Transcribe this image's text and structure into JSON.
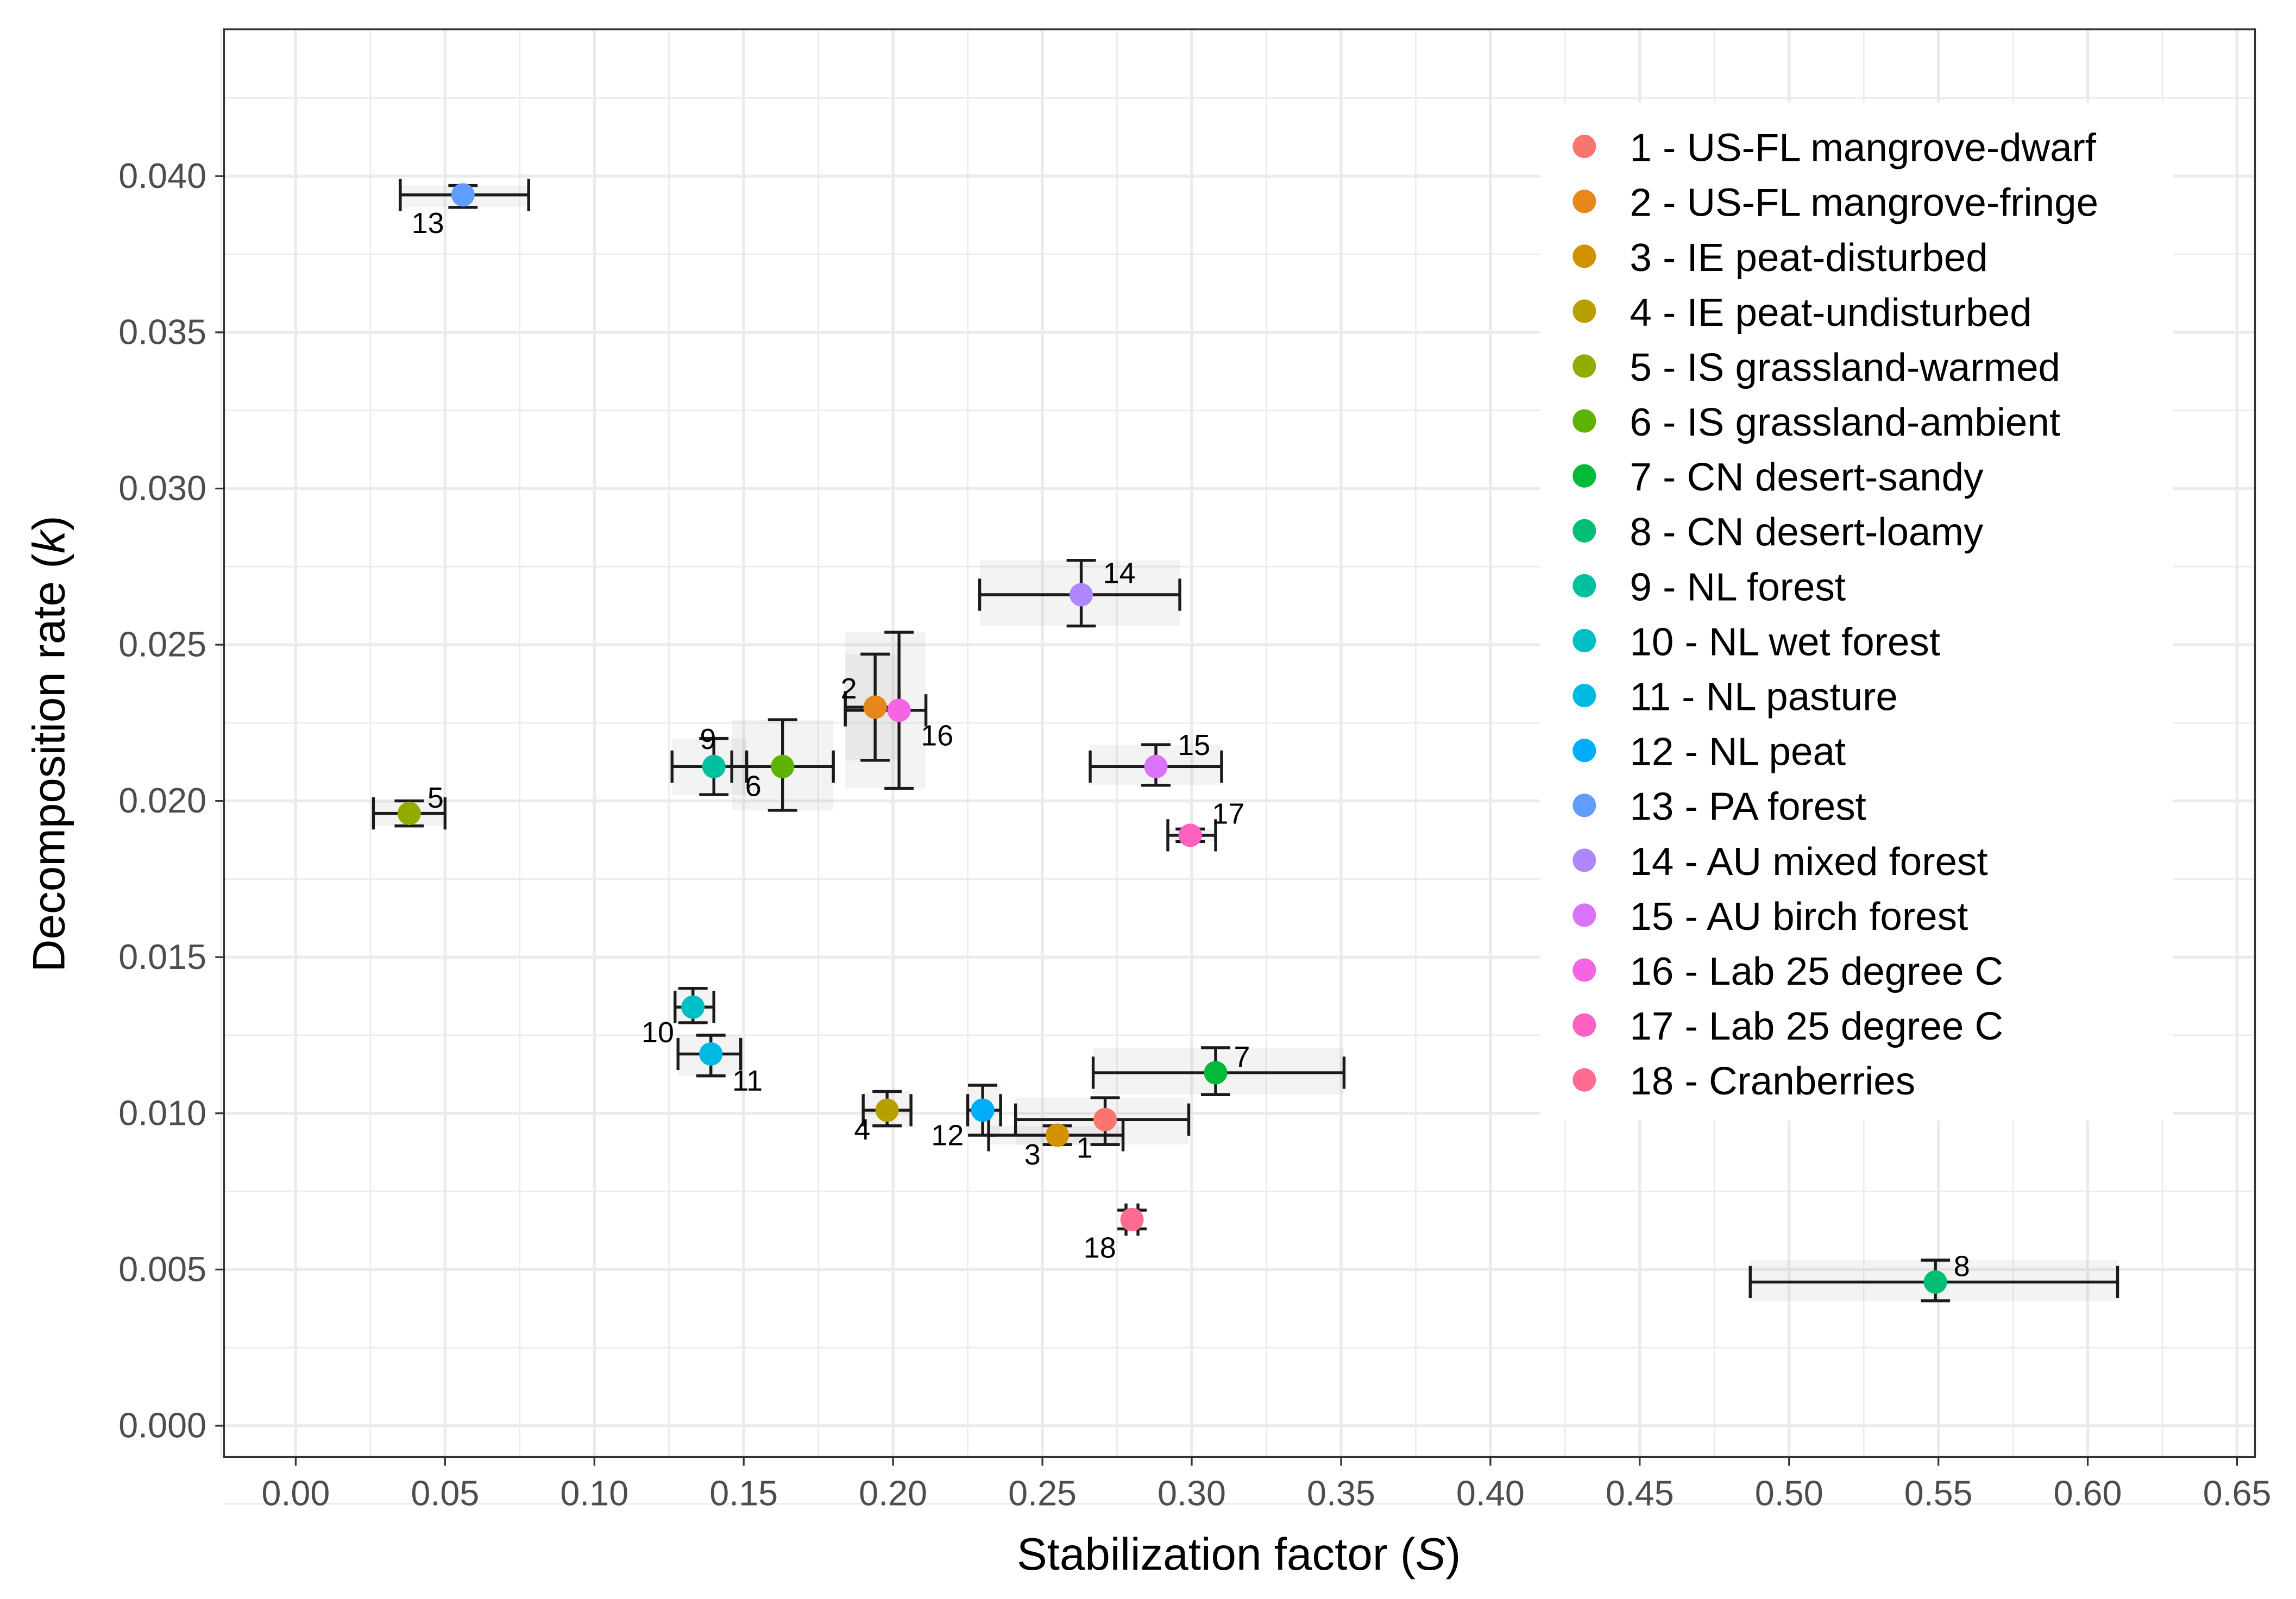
{
  "chart_data": {
    "type": "scatter",
    "title": "",
    "xlabel": "Stabilization factor (S)",
    "xlabel_main": "Stabilization factor ",
    "xlabel_symbol": "S",
    "ylabel": "Decomposition rate (k)",
    "ylabel_main": "Decomposition rate ",
    "ylabel_symbol": "k",
    "xlim": [
      -0.024,
      0.656
    ],
    "ylim": [
      -0.001,
      0.0447
    ],
    "xticks": [
      "0.00",
      "0.05",
      "0.10",
      "0.15",
      "0.20",
      "0.25",
      "0.30",
      "0.35",
      "0.40",
      "0.45",
      "0.50",
      "0.55",
      "0.60",
      "0.65"
    ],
    "yticks": [
      "0.000",
      "0.005",
      "0.010",
      "0.015",
      "0.020",
      "0.025",
      "0.030",
      "0.035",
      "0.040"
    ],
    "grid": true,
    "legend_position": "top-right",
    "points": [
      {
        "id": "1",
        "label": "1 - US-FL mangrove-dwarf",
        "x": 0.271,
        "y": 0.0098,
        "xmin": 0.241,
        "xmax": 0.299,
        "ymin": 0.009,
        "ymax": 0.0105,
        "color": "#F8766D"
      },
      {
        "id": "2",
        "label": "2 - US-FL mangrove-fringe",
        "x": 0.194,
        "y": 0.023,
        "xmin": 0.184,
        "xmax": 0.202,
        "ymin": 0.0213,
        "ymax": 0.0247,
        "color": "#E7861B"
      },
      {
        "id": "3",
        "label": "3 - IE peat-disturbed",
        "x": 0.255,
        "y": 0.0093,
        "xmin": 0.232,
        "xmax": 0.277,
        "ymin": 0.009,
        "ymax": 0.0096,
        "color": "#D39200"
      },
      {
        "id": "4",
        "label": "4 - IE peat-undisturbed",
        "x": 0.198,
        "y": 0.0101,
        "xmin": 0.19,
        "xmax": 0.206,
        "ymin": 0.0096,
        "ymax": 0.0107,
        "color": "#B79F00"
      },
      {
        "id": "5",
        "label": "5 - IS grassland-warmed",
        "x": 0.038,
        "y": 0.0196,
        "xmin": 0.026,
        "xmax": 0.05,
        "ymin": 0.0192,
        "ymax": 0.02,
        "color": "#93AA00"
      },
      {
        "id": "6",
        "label": "6 - IS grassland-ambient",
        "x": 0.163,
        "y": 0.0211,
        "xmin": 0.146,
        "xmax": 0.18,
        "ymin": 0.0197,
        "ymax": 0.0226,
        "color": "#5EB300"
      },
      {
        "id": "7",
        "label": "7 - CN desert-sandy",
        "x": 0.308,
        "y": 0.0113,
        "xmin": 0.267,
        "xmax": 0.351,
        "ymin": 0.0106,
        "ymax": 0.0121,
        "color": "#00BA38"
      },
      {
        "id": "8",
        "label": "8 - CN desert-loamy",
        "x": 0.549,
        "y": 0.0046,
        "xmin": 0.487,
        "xmax": 0.61,
        "ymin": 0.004,
        "ymax": 0.0053,
        "color": "#00BF74"
      },
      {
        "id": "9",
        "label": "9 - NL forest",
        "x": 0.14,
        "y": 0.0211,
        "xmin": 0.126,
        "xmax": 0.151,
        "ymin": 0.0202,
        "ymax": 0.022,
        "color": "#00C19F"
      },
      {
        "id": "10",
        "label": "10 - NL wet forest",
        "x": 0.133,
        "y": 0.0134,
        "xmin": 0.127,
        "xmax": 0.14,
        "ymin": 0.0129,
        "ymax": 0.014,
        "color": "#00BFC4"
      },
      {
        "id": "11",
        "label": "11 - NL pasture",
        "x": 0.139,
        "y": 0.0119,
        "xmin": 0.128,
        "xmax": 0.149,
        "ymin": 0.0112,
        "ymax": 0.0125,
        "color": "#00B9E3"
      },
      {
        "id": "12",
        "label": "12 - NL peat",
        "x": 0.23,
        "y": 0.0101,
        "xmin": 0.225,
        "xmax": 0.236,
        "ymin": 0.0093,
        "ymax": 0.0109,
        "color": "#00ADFA"
      },
      {
        "id": "13",
        "label": "13 - PA forest",
        "x": 0.056,
        "y": 0.0394,
        "xmin": 0.035,
        "xmax": 0.078,
        "ymin": 0.039,
        "ymax": 0.0397,
        "color": "#619CFF"
      },
      {
        "id": "14",
        "label": "14 - AU mixed forest",
        "x": 0.263,
        "y": 0.0266,
        "xmin": 0.229,
        "xmax": 0.296,
        "ymin": 0.0256,
        "ymax": 0.0277,
        "color": "#AE87FF"
      },
      {
        "id": "15",
        "label": "15 - AU birch forest",
        "x": 0.288,
        "y": 0.0211,
        "xmin": 0.266,
        "xmax": 0.31,
        "ymin": 0.0205,
        "ymax": 0.0218,
        "color": "#DB72FB"
      },
      {
        "id": "16",
        "label": "16 - Lab 25 degree C",
        "x": 0.202,
        "y": 0.0229,
        "xmin": 0.184,
        "xmax": 0.211,
        "ymin": 0.0204,
        "ymax": 0.0254,
        "color": "#F564E3"
      },
      {
        "id": "17",
        "label": "17 - Lab 25 degree C",
        "x": 0.2995,
        "y": 0.0189,
        "xmin": 0.292,
        "xmax": 0.308,
        "ymin": 0.0187,
        "ymax": 0.0191,
        "color": "#FF61C3"
      },
      {
        "id": "18",
        "label": "18 - Cranberries",
        "x": 0.28,
        "y": 0.0066,
        "xmin": 0.278,
        "xmax": 0.282,
        "ymin": 0.0063,
        "ymax": 0.0069,
        "color": "#FF6C91"
      }
    ]
  }
}
